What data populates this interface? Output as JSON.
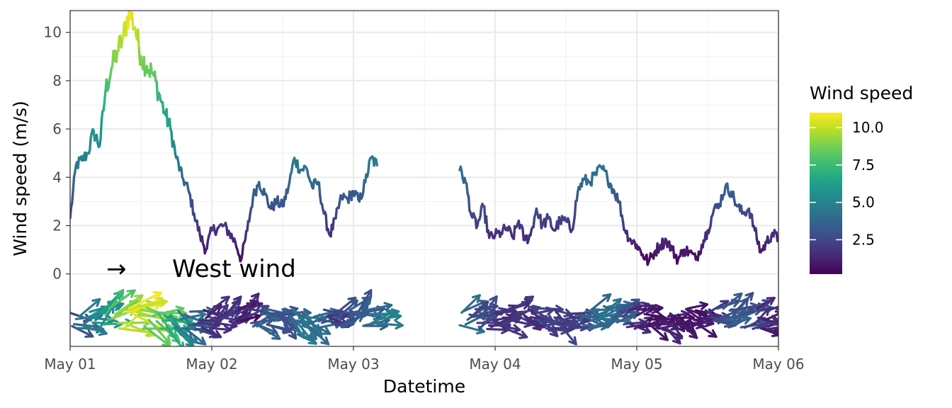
{
  "chart_data": {
    "type": "line",
    "xlabel": "Datetime",
    "ylabel": "Wind speed (m/s)",
    "x_tick_labels": [
      "May 01",
      "May 02",
      "May 03",
      "May 04",
      "May 05",
      "May 06"
    ],
    "y_tick_labels": [
      "0",
      "2",
      "4",
      "6",
      "8",
      "10"
    ],
    "xlim_days": [
      0,
      5
    ],
    "ylim": [
      -3,
      10.9
    ],
    "legend": {
      "title": "Wind speed",
      "position": "right",
      "type": "colorbar",
      "labels": [
        "10.0",
        "7.5",
        "5.0",
        "2.5"
      ],
      "label_values": [
        10,
        7.5,
        5,
        2.5
      ],
      "range": [
        0.2,
        11
      ],
      "colormap": "viridis"
    },
    "annotation": {
      "symbol": "→",
      "text": "West wind"
    },
    "series": [
      {
        "times": [
          "2020-05-01 00:00",
          "2020-05-01 01:00",
          "2020-05-01 02:00",
          "2020-05-01 03:00",
          "2020-05-01 04:00",
          "2020-05-01 05:00",
          "2020-05-01 06:00",
          "2020-05-01 07:00",
          "2020-05-01 08:00",
          "2020-05-01 09:00",
          "2020-05-01 10:00",
          "2020-05-01 11:00",
          "2020-05-01 12:00",
          "2020-05-01 13:00",
          "2020-05-01 14:00",
          "2020-05-01 15:00",
          "2020-05-01 16:00",
          "2020-05-01 17:00",
          "2020-05-01 18:00",
          "2020-05-01 19:00",
          "2020-05-01 20:00",
          "2020-05-01 21:00",
          "2020-05-01 22:00",
          "2020-05-01 23:00",
          "2020-05-02 00:00",
          "2020-05-02 01:00",
          "2020-05-02 02:00",
          "2020-05-02 03:00",
          "2020-05-02 04:00",
          "2020-05-02 05:00",
          "2020-05-02 06:00",
          "2020-05-02 07:00",
          "2020-05-02 08:00",
          "2020-05-02 09:00",
          "2020-05-02 10:00",
          "2020-05-02 11:00",
          "2020-05-02 12:00",
          "2020-05-02 13:00",
          "2020-05-02 14:00",
          "2020-05-02 15:00",
          "2020-05-02 16:00",
          "2020-05-02 17:00",
          "2020-05-02 18:00",
          "2020-05-02 19:00",
          "2020-05-02 20:00",
          "2020-05-02 21:00",
          "2020-05-02 22:00",
          "2020-05-02 23:00",
          "2020-05-03 00:00",
          "2020-05-03 01:00",
          "2020-05-03 02:00",
          "2020-05-03 03:00",
          "2020-05-03 04:00"
        ],
        "values": [
          2.3,
          4.5,
          4.7,
          5.0,
          5.9,
          5.3,
          7.6,
          8.5,
          9.2,
          9.8,
          10.9,
          10.2,
          9.0,
          8.6,
          8.3,
          7.5,
          6.7,
          6.0,
          4.8,
          4.0,
          3.5,
          2.5,
          1.6,
          1.0,
          1.8,
          1.9,
          2.0,
          1.7,
          1.3,
          0.6,
          1.8,
          3.2,
          3.8,
          3.3,
          2.7,
          3.0,
          2.8,
          3.6,
          4.8,
          4.3,
          4.4,
          3.6,
          3.8,
          2.5,
          1.6,
          2.3,
          3.2,
          3.1,
          3.4,
          3.0,
          3.8,
          4.8,
          4.5
        ]
      },
      {
        "times": [
          "2020-05-03 18:00",
          "2020-05-03 19:00",
          "2020-05-03 20:00",
          "2020-05-03 21:00",
          "2020-05-03 22:00",
          "2020-05-03 23:00",
          "2020-05-04 00:00",
          "2020-05-04 01:00",
          "2020-05-04 02:00",
          "2020-05-04 03:00",
          "2020-05-04 04:00",
          "2020-05-04 05:00",
          "2020-05-04 06:00",
          "2020-05-04 07:00",
          "2020-05-04 08:00",
          "2020-05-04 09:00",
          "2020-05-04 10:00",
          "2020-05-04 11:00",
          "2020-05-04 12:00",
          "2020-05-04 13:00",
          "2020-05-04 14:00",
          "2020-05-04 15:00",
          "2020-05-04 16:00",
          "2020-05-04 17:00",
          "2020-05-04 18:00",
          "2020-05-04 19:00",
          "2020-05-04 20:00",
          "2020-05-04 21:00",
          "2020-05-04 22:00",
          "2020-05-04 23:00",
          "2020-05-05 00:00",
          "2020-05-05 01:00",
          "2020-05-05 02:00",
          "2020-05-05 03:00",
          "2020-05-05 04:00",
          "2020-05-05 05:00",
          "2020-05-05 06:00",
          "2020-05-05 07:00",
          "2020-05-05 08:00",
          "2020-05-05 09:00",
          "2020-05-05 10:00",
          "2020-05-05 11:00",
          "2020-05-05 12:00",
          "2020-05-05 13:00",
          "2020-05-05 14:00",
          "2020-05-05 15:00",
          "2020-05-05 16:00",
          "2020-05-05 17:00",
          "2020-05-05 18:00",
          "2020-05-05 19:00",
          "2020-05-05 20:00",
          "2020-05-05 21:00",
          "2020-05-05 22:00",
          "2020-05-05 23:00",
          "2020-05-06 00:00"
        ],
        "values": [
          4.3,
          3.8,
          2.4,
          2.0,
          2.8,
          1.5,
          1.6,
          1.7,
          1.9,
          1.5,
          2.2,
          1.4,
          1.6,
          2.7,
          2.0,
          2.3,
          1.8,
          2.2,
          2.2,
          1.8,
          3.4,
          3.9,
          3.8,
          4.1,
          4.4,
          4.0,
          3.5,
          3.0,
          1.8,
          1.4,
          1.2,
          0.8,
          0.5,
          0.9,
          1.2,
          1.4,
          1.0,
          0.6,
          1.0,
          0.9,
          0.6,
          1.2,
          1.8,
          2.6,
          2.9,
          3.6,
          3.4,
          2.8,
          2.5,
          2.7,
          1.8,
          0.9,
          1.3,
          1.7,
          1.4
        ]
      }
    ]
  }
}
